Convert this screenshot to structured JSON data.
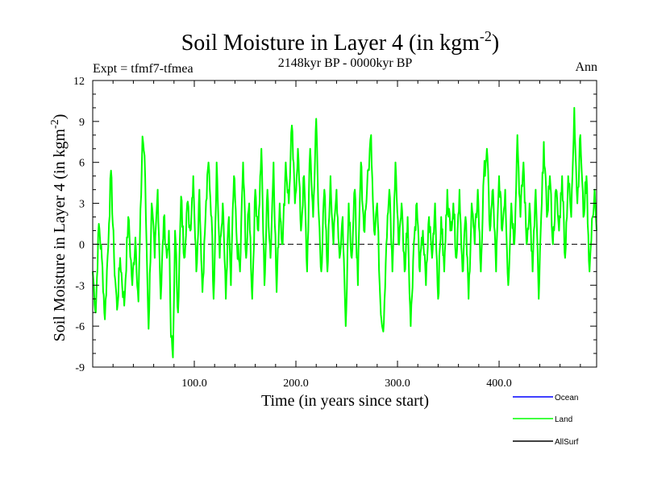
{
  "chart_data": {
    "type": "line",
    "title": "Soil Moisture in Layer 4 (in kgm",
    "title_sup": "-2",
    "title_close": ")",
    "subtitle": "2148kyr BP - 0000kyr BP",
    "left_label": "Expt = tfmf7-tfmea",
    "right_label": "Ann",
    "xlabel": "Time (in years since start)",
    "ylabel": "Soil Moisture in Layer 4 (in kgm",
    "ylabel_sup": "-2",
    "ylabel_close": ")",
    "xlim": [
      0,
      496
    ],
    "ylim": [
      -9,
      12
    ],
    "xticks": [
      100,
      200,
      300,
      400
    ],
    "xtick_labels": [
      "100.0",
      "200.0",
      "300.0",
      "400.0"
    ],
    "yticks": [
      -9,
      -6,
      -3,
      0,
      3,
      6,
      9,
      12
    ],
    "ytick_labels": [
      "-9",
      "-6",
      "-3",
      "0",
      "3",
      "6",
      "9",
      "12"
    ],
    "reference_line": 0,
    "anchors": [
      [
        0,
        -2
      ],
      [
        3,
        -5
      ],
      [
        6,
        1.5
      ],
      [
        9,
        -1
      ],
      [
        12,
        -5.5
      ],
      [
        16,
        1.5
      ],
      [
        18,
        5.4
      ],
      [
        21,
        -1
      ],
      [
        24,
        -4.8
      ],
      [
        27,
        -1
      ],
      [
        31,
        -4.5
      ],
      [
        35,
        2
      ],
      [
        39,
        -3
      ],
      [
        42,
        0.5
      ],
      [
        45,
        -4.2
      ],
      [
        49,
        7.9
      ],
      [
        51,
        6.5
      ],
      [
        53,
        0
      ],
      [
        55,
        -6.2
      ],
      [
        58,
        3
      ],
      [
        61,
        -1
      ],
      [
        64,
        4
      ],
      [
        67,
        -4
      ],
      [
        70,
        2
      ],
      [
        73,
        -1
      ],
      [
        75,
        1
      ],
      [
        77,
        -6.8
      ],
      [
        79,
        -8.3
      ],
      [
        81,
        1
      ],
      [
        84,
        -5
      ],
      [
        87,
        3.5
      ],
      [
        90,
        -1
      ],
      [
        93,
        3
      ],
      [
        96,
        1
      ],
      [
        99,
        5
      ],
      [
        102,
        -2
      ],
      [
        105,
        4
      ],
      [
        108,
        -3.5
      ],
      [
        111,
        2
      ],
      [
        114,
        6
      ],
      [
        117,
        2
      ],
      [
        119,
        -4
      ],
      [
        122,
        6
      ],
      [
        125,
        -1
      ],
      [
        128,
        3
      ],
      [
        131,
        -4
      ],
      [
        134,
        2
      ],
      [
        136,
        -3
      ],
      [
        139,
        5
      ],
      [
        142,
        0
      ],
      [
        145,
        -2
      ],
      [
        148,
        6
      ],
      [
        151,
        -1
      ],
      [
        154,
        3
      ],
      [
        157,
        -4
      ],
      [
        160,
        4
      ],
      [
        163,
        1
      ],
      [
        166,
        7
      ],
      [
        169,
        -3
      ],
      [
        172,
        4
      ],
      [
        175,
        -1
      ],
      [
        178,
        6
      ],
      [
        181,
        -3.5
      ],
      [
        184,
        3
      ],
      [
        187,
        0
      ],
      [
        190,
        6
      ],
      [
        193,
        3
      ],
      [
        196,
        8.7
      ],
      [
        199,
        3
      ],
      [
        202,
        7
      ],
      [
        205,
        1
      ],
      [
        208,
        5
      ],
      [
        211,
        -2
      ],
      [
        214,
        7
      ],
      [
        217,
        2
      ],
      [
        220,
        9.2
      ],
      [
        222,
        3
      ],
      [
        225,
        -2
      ],
      [
        228,
        4
      ],
      [
        231,
        -2
      ],
      [
        234,
        5
      ],
      [
        237,
        0
      ],
      [
        240,
        4
      ],
      [
        243,
        -1
      ],
      [
        246,
        2
      ],
      [
        249,
        -6
      ],
      [
        252,
        3
      ],
      [
        255,
        -1
      ],
      [
        258,
        4
      ],
      [
        261,
        -3
      ],
      [
        264,
        6
      ],
      [
        267,
        1
      ],
      [
        270,
        4
      ],
      [
        274,
        8
      ],
      [
        277,
        1
      ],
      [
        280,
        3
      ],
      [
        283,
        -4
      ],
      [
        286,
        -6.4
      ],
      [
        289,
        0
      ],
      [
        292,
        4
      ],
      [
        295,
        -2
      ],
      [
        298,
        6
      ],
      [
        301,
        0
      ],
      [
        304,
        3
      ],
      [
        307,
        -2
      ],
      [
        310,
        2
      ],
      [
        313,
        -6
      ],
      [
        316,
        0
      ],
      [
        319,
        3
      ],
      [
        322,
        -2
      ],
      [
        325,
        1
      ],
      [
        328,
        -3
      ],
      [
        331,
        2
      ],
      [
        334,
        -1
      ],
      [
        337,
        3
      ],
      [
        340,
        -4
      ],
      [
        343,
        2
      ],
      [
        346,
        -2
      ],
      [
        349,
        4
      ],
      [
        352,
        1
      ],
      [
        355,
        3
      ],
      [
        358,
        -1
      ],
      [
        361,
        4
      ],
      [
        364,
        -2
      ],
      [
        367,
        2
      ],
      [
        370,
        -4
      ],
      [
        373,
        3
      ],
      [
        376,
        0
      ],
      [
        379,
        4
      ],
      [
        382,
        -2
      ],
      [
        385,
        5
      ],
      [
        388,
        7
      ],
      [
        391,
        1
      ],
      [
        394,
        4
      ],
      [
        397,
        -2
      ],
      [
        400,
        5
      ],
      [
        403,
        1
      ],
      [
        406,
        4
      ],
      [
        409,
        -3
      ],
      [
        412,
        3
      ],
      [
        415,
        0
      ],
      [
        418,
        8
      ],
      [
        421,
        2
      ],
      [
        424,
        6
      ],
      [
        427,
        0
      ],
      [
        430,
        3
      ],
      [
        433,
        -2
      ],
      [
        436,
        4
      ],
      [
        439,
        -4
      ],
      [
        442,
        3
      ],
      [
        444,
        7.5
      ],
      [
        447,
        2
      ],
      [
        450,
        5
      ],
      [
        453,
        0
      ],
      [
        456,
        4
      ],
      [
        459,
        1
      ],
      [
        462,
        5
      ],
      [
        465,
        -1
      ],
      [
        468,
        5
      ],
      [
        471,
        2
      ],
      [
        474,
        10
      ],
      [
        477,
        3
      ],
      [
        480,
        8
      ],
      [
        483,
        2
      ],
      [
        486,
        5
      ],
      [
        489,
        -2
      ],
      [
        492,
        2
      ],
      [
        494,
        4
      ],
      [
        496,
        1
      ]
    ],
    "series": [
      {
        "name": "Ocean",
        "color": "#0000ff"
      },
      {
        "name": "Land",
        "color": "#00ff00"
      },
      {
        "name": "AllSurf",
        "color": "#000000"
      }
    ],
    "legend_position": "bottom-right"
  }
}
